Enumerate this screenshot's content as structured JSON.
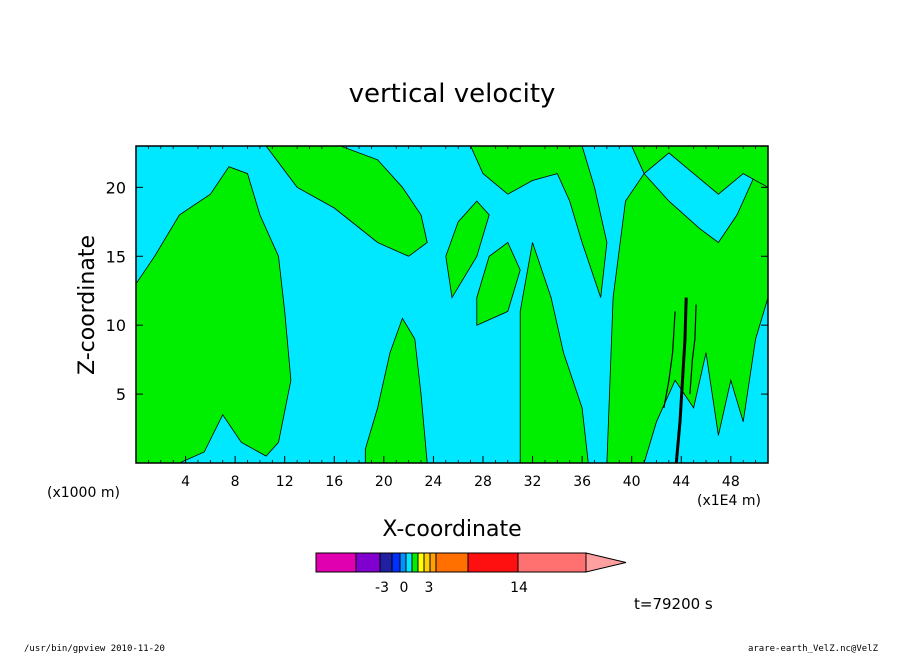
{
  "chart_data": {
    "type": "heatmap",
    "title": "vertical velocity",
    "xlabel": "X-coordinate",
    "ylabel": "Z-coordinate",
    "x_units": "(x1000 m)",
    "x_units_right": "(x1E4 m)",
    "x_ticks": [
      "4",
      "8",
      "12",
      "16",
      "20",
      "24",
      "28",
      "32",
      "36",
      "40",
      "44",
      "48"
    ],
    "y_ticks": [
      "5",
      "10",
      "15",
      "20"
    ],
    "xlim": [
      0,
      51
    ],
    "ylim": [
      0,
      23
    ],
    "colors": {
      "negative": "#00e8ff",
      "positive": "#00ee00",
      "strong": "#000000"
    },
    "regions": [
      {
        "sign": "positive",
        "x": [
          0,
          3.5,
          5.5,
          7,
          8.5,
          10.5,
          11.5,
          12.5,
          12,
          11.5,
          10,
          9,
          7.5,
          6,
          3.5,
          1.5,
          0
        ],
        "y": [
          0,
          0,
          0.8,
          3.5,
          1.5,
          0.5,
          1.5,
          6,
          11,
          15,
          18,
          21,
          21.5,
          19.5,
          18,
          15,
          13
        ]
      },
      {
        "sign": "positive",
        "x": [
          18.5,
          23.5,
          23,
          22.5,
          21.5,
          20.5,
          19.5,
          18.5
        ],
        "y": [
          0,
          0,
          5,
          9,
          10.5,
          8,
          4,
          1
        ]
      },
      {
        "sign": "positive",
        "x": [
          31,
          36.5,
          36,
          34.5,
          33.5,
          32,
          31,
          31
        ],
        "y": [
          0,
          0,
          4,
          8,
          12,
          16,
          11,
          5
        ]
      },
      {
        "sign": "positive",
        "x": [
          10.5,
          16.5,
          19.5,
          21.5,
          23,
          23.5,
          22,
          19.5,
          16,
          13
        ],
        "y": [
          23,
          23,
          22,
          20,
          18,
          16,
          15,
          16,
          18.5,
          20
        ]
      },
      {
        "sign": "positive",
        "x": [
          24.5,
          27,
          28,
          30,
          32,
          34,
          35,
          36,
          37.5,
          38,
          37,
          36,
          34,
          32,
          30,
          28,
          26
        ],
        "y": [
          23,
          23,
          21,
          19.5,
          20.5,
          21,
          19,
          16,
          12,
          16,
          20,
          23,
          23,
          23,
          23,
          23,
          23
        ]
      },
      {
        "sign": "positive",
        "x": [
          25.5,
          27.5,
          28.5,
          27.5,
          26,
          25
        ],
        "y": [
          12,
          15,
          18,
          19,
          17.5,
          15
        ]
      },
      {
        "sign": "positive",
        "x": [
          27.5,
          30,
          31,
          30,
          28.5,
          27.5
        ],
        "y": [
          10,
          11,
          14,
          16,
          15,
          12
        ]
      },
      {
        "sign": "positive",
        "x": [
          38,
          41,
          42,
          43.5,
          45,
          46,
          47,
          48,
          49,
          50,
          51,
          51,
          50,
          48.5,
          47,
          45.5,
          43,
          41,
          39.5,
          38.5
        ],
        "y": [
          0,
          0,
          3,
          6,
          4,
          8,
          2,
          6,
          3,
          9,
          12,
          22,
          21,
          18,
          16,
          17,
          19,
          21,
          19,
          12
        ]
      },
      {
        "sign": "positive",
        "x": [
          40,
          44,
          46,
          48,
          50,
          51,
          51,
          49,
          47,
          45,
          43,
          41
        ],
        "y": [
          23,
          23,
          23,
          23,
          23,
          23,
          20,
          21,
          19.5,
          21,
          22.5,
          21
        ]
      }
    ],
    "streaks": [
      {
        "x": [
          43.6,
          43.9,
          44.1,
          44.3,
          44.4
        ],
        "y": [
          0,
          3,
          6,
          9,
          12
        ]
      },
      {
        "x": [
          42.6,
          43.0,
          43.3,
          43.5
        ],
        "y": [
          4,
          6,
          8,
          11
        ]
      },
      {
        "x": [
          44.7,
          44.9,
          45.1,
          45.2
        ],
        "y": [
          5,
          7.5,
          9,
          11.5
        ]
      }
    ],
    "colorbar": {
      "colors": [
        "#e000b0",
        "#8000d0",
        "#2020a0",
        "#0030ff",
        "#0090ff",
        "#00e8ff",
        "#00ee00",
        "#ffff00",
        "#ffd000",
        "#ffa000",
        "#ff7000",
        "#ff1010",
        "#ff7070",
        "#ffa0a0"
      ],
      "labels": [
        "-3",
        "0",
        "3",
        "14"
      ]
    },
    "time_label": "t=79200 s"
  },
  "footer": {
    "left": "/usr/bin/gpview 2010-11-20",
    "right": "arare-earth_VelZ.nc@VelZ"
  }
}
